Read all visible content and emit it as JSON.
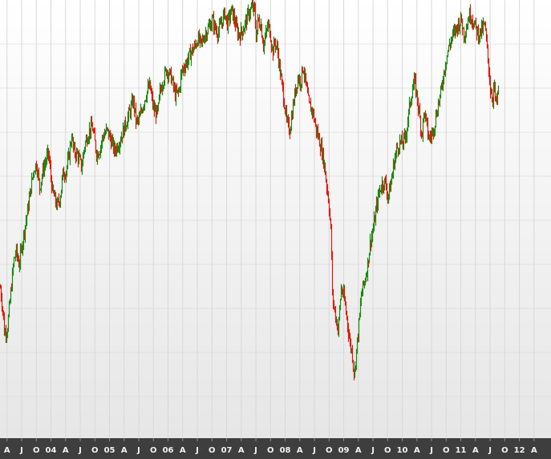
{
  "chart_data": {
    "type": "line",
    "style": "ohlc-bars",
    "title": "",
    "xlabel": "",
    "ylabel": "",
    "y_axis_labels_shown": false,
    "x_range": [
      2003.13,
      2012.54
    ],
    "grid": true,
    "legend": "none",
    "colors": {
      "up": "#1a8a10",
      "down": "#d81e0e",
      "axis_bar": "#3e3e3e",
      "axis_text": "#f2f2f2",
      "grid": "#d8d8d8",
      "background_top": "#ffffff",
      "background_bottom": "#e6e6e6"
    },
    "x_ticks": [
      {
        "t": 2003.25,
        "label": "A"
      },
      {
        "t": 2003.5,
        "label": "J"
      },
      {
        "t": 2003.75,
        "label": "O"
      },
      {
        "t": 2004.0,
        "label": "04"
      },
      {
        "t": 2004.25,
        "label": "A"
      },
      {
        "t": 2004.5,
        "label": "J"
      },
      {
        "t": 2004.75,
        "label": "O"
      },
      {
        "t": 2005.0,
        "label": "05"
      },
      {
        "t": 2005.25,
        "label": "A"
      },
      {
        "t": 2005.5,
        "label": "J"
      },
      {
        "t": 2005.75,
        "label": "O"
      },
      {
        "t": 2006.0,
        "label": "06"
      },
      {
        "t": 2006.25,
        "label": "A"
      },
      {
        "t": 2006.5,
        "label": "J"
      },
      {
        "t": 2006.75,
        "label": "O"
      },
      {
        "t": 2007.0,
        "label": "07"
      },
      {
        "t": 2007.25,
        "label": "A"
      },
      {
        "t": 2007.5,
        "label": "J"
      },
      {
        "t": 2007.75,
        "label": "O"
      },
      {
        "t": 2008.0,
        "label": "08"
      },
      {
        "t": 2008.25,
        "label": "A"
      },
      {
        "t": 2008.5,
        "label": "J"
      },
      {
        "t": 2008.75,
        "label": "O"
      },
      {
        "t": 2009.0,
        "label": "09"
      },
      {
        "t": 2009.25,
        "label": "A"
      },
      {
        "t": 2009.5,
        "label": "J"
      },
      {
        "t": 2009.75,
        "label": "O"
      },
      {
        "t": 2010.0,
        "label": "10"
      },
      {
        "t": 2010.25,
        "label": "A"
      },
      {
        "t": 2010.5,
        "label": "J"
      },
      {
        "t": 2010.75,
        "label": "O"
      },
      {
        "t": 2011.0,
        "label": "11"
      },
      {
        "t": 2011.25,
        "label": "A"
      },
      {
        "t": 2011.5,
        "label": "J"
      },
      {
        "t": 2011.75,
        "label": "O"
      },
      {
        "t": 2012.0,
        "label": "12"
      },
      {
        "t": 2012.25,
        "label": "A"
      }
    ],
    "y_range": [
      0,
      100
    ],
    "series": [
      {
        "x": [
          2003.13,
          2003.18,
          2003.2,
          2003.25,
          2003.3,
          2003.36,
          2003.4,
          2003.45,
          2003.5,
          2003.55,
          2003.6,
          2003.65,
          2003.7,
          2003.75,
          2003.8,
          2003.87,
          2003.95,
          2004.02,
          2004.1,
          2004.15,
          2004.2,
          2004.25,
          2004.3,
          2004.35,
          2004.38,
          2004.45,
          2004.52,
          2004.56,
          2004.6,
          2004.65,
          2004.7,
          2004.78,
          2004.85,
          2004.88,
          2004.95,
          2005.0,
          2005.08,
          2005.15,
          2005.22,
          2005.3,
          2005.35,
          2005.4,
          2005.45,
          2005.5,
          2005.56,
          2005.62,
          2005.68,
          2005.75,
          2005.82,
          2005.85,
          2005.9,
          2005.97,
          2006.05,
          2006.12,
          2006.18,
          2006.22,
          2006.26,
          2006.32,
          2006.38,
          2006.45,
          2006.5,
          2006.56,
          2006.62,
          2006.68,
          2006.75,
          2006.8,
          2006.85,
          2006.92,
          2006.97,
          2007.0,
          2007.05,
          2007.08,
          2007.13,
          2007.18,
          2007.22,
          2007.28,
          2007.33,
          2007.38,
          2007.43,
          2007.47,
          2007.5,
          2007.53,
          2007.58,
          2007.62,
          2007.66,
          2007.7,
          2007.74,
          2007.78,
          2007.82,
          2007.87,
          2007.92,
          2007.97,
          2008.02,
          2008.07,
          2008.12,
          2008.16,
          2008.21,
          2008.26,
          2008.3,
          2008.35,
          2008.4,
          2008.46,
          2008.52,
          2008.57,
          2008.62,
          2008.66,
          2008.7,
          2008.74,
          2008.78,
          2008.8,
          2008.83,
          2008.87,
          2008.9,
          2008.95,
          2009.0,
          2009.05,
          2009.1,
          2009.14,
          2009.16,
          2009.18,
          2009.21,
          2009.25,
          2009.3,
          2009.35,
          2009.4,
          2009.45,
          2009.5,
          2009.55,
          2009.6,
          2009.65,
          2009.7,
          2009.75,
          2009.8,
          2009.85,
          2009.9,
          2009.95,
          2010.0,
          2010.05,
          2010.1,
          2010.15,
          2010.2,
          2010.25,
          2010.3,
          2010.33,
          2010.37,
          2010.4,
          2010.45,
          2010.5,
          2010.55,
          2010.6,
          2010.65,
          2010.7,
          2010.75,
          2010.8,
          2010.85,
          2010.9,
          2010.95,
          2011.0,
          2011.05,
          2011.1,
          2011.13,
          2011.16,
          2011.2,
          2011.25,
          2011.3,
          2011.35,
          2011.4,
          2011.45,
          2011.5,
          2011.54,
          2011.56,
          2011.58,
          2011.6,
          2011.62,
          2011.64
        ],
        "y": [
          31.5,
          25.0,
          20.5,
          21.5,
          29.0,
          38.2,
          40.5,
          37.2,
          42.0,
          46.5,
          50.8,
          56.0,
          60.5,
          62.0,
          56.0,
          61.0,
          64.5,
          55.0,
          51.5,
          53.5,
          59.5,
          60.0,
          63.5,
          69.0,
          65.0,
          64.0,
          61.0,
          65.8,
          68.0,
          70.0,
          71.0,
          64.0,
          66.5,
          68.6,
          70.0,
          68.5,
          65.0,
          67.0,
          69.5,
          73.0,
          75.0,
          77.5,
          72.0,
          72.5,
          76.0,
          79.0,
          81.0,
          75.0,
          74.0,
          79.0,
          82.0,
          85.0,
          83.0,
          78.6,
          79.5,
          84.0,
          85.5,
          87.0,
          89.0,
          90.5,
          92.5,
          91.0,
          93.5,
          95.0,
          97.0,
          95.0,
          94.0,
          97.0,
          99.0,
          96.0,
          98.0,
          99.5,
          97.0,
          94.0,
          93.5,
          95.0,
          97.0,
          99.0,
          100.0,
          99.5,
          93.0,
          97.0,
          96.0,
          91.0,
          93.0,
          96.0,
          94.0,
          89.0,
          92.0,
          89.0,
          83.0,
          78.0,
          72.0,
          70.0,
          75.0,
          79.0,
          83.0,
          82.0,
          86.0,
          81.0,
          76.0,
          75.0,
          70.5,
          68.0,
          65.0,
          62.0,
          57.0,
          52.5,
          44.0,
          30.0,
          26.5,
          23.5,
          21.0,
          31.5,
          29.0,
          24.0,
          18.0,
          15.5,
          12.0,
          10.5,
          16.0,
          22.0,
          30.5,
          33.0,
          37.0,
          43.0,
          46.0,
          51.0,
          55.0,
          57.0,
          57.5,
          53.8,
          57.0,
          62.0,
          65.5,
          67.0,
          67.0,
          68.5,
          74.0,
          79.0,
          82.0,
          78.0,
          72.0,
          69.0,
          75.0,
          72.0,
          68.0,
          69.0,
          72.0,
          76.0,
          79.0,
          84.0,
          88.0,
          91.0,
          93.0,
          94.5,
          96.0,
          97.2,
          93.5,
          96.0,
          98.0,
          98.5,
          97.0,
          95.0,
          93.5,
          94.5,
          96.0,
          89.0,
          80.0,
          78.0,
          81.5,
          78.0,
          76.0,
          78.5,
          79.5
        ]
      }
    ]
  }
}
